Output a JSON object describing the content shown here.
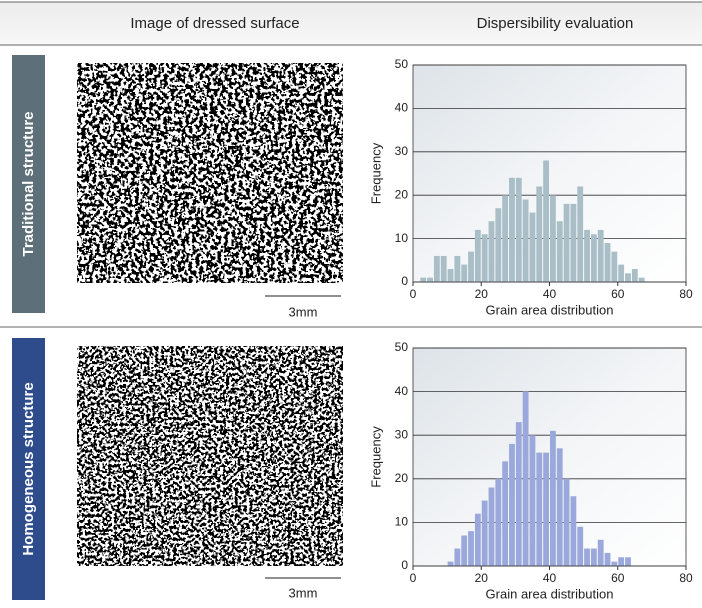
{
  "header": {
    "image_column": "Image of dressed surface",
    "evaluation_column": "Dispersibility evaluation"
  },
  "rows": [
    {
      "label": "Traditional structure",
      "scale_bar": "3mm"
    },
    {
      "label": "Homogeneous structure",
      "scale_bar": "3mm"
    }
  ],
  "chart_data": [
    {
      "type": "histogram",
      "x_label": "Grain area distribution",
      "y_label": "Frequency",
      "bins": [
        2,
        4,
        6,
        8,
        10,
        12,
        14,
        16,
        18,
        20,
        22,
        24,
        26,
        28,
        30,
        32,
        34,
        36,
        38,
        40,
        42,
        44,
        46,
        48,
        50,
        52,
        54,
        56,
        58,
        60,
        62,
        64,
        66,
        68
      ],
      "counts": [
        1,
        1,
        6,
        6,
        3,
        6,
        4,
        7,
        12,
        11,
        14,
        17,
        20,
        24,
        24,
        19,
        16,
        22,
        28,
        20,
        14,
        18,
        18,
        22,
        12,
        11,
        12,
        9,
        7,
        4,
        2,
        3,
        1
      ],
      "color": "#a9bec7",
      "xlim": [
        0,
        80
      ],
      "ylim": [
        0,
        50
      ],
      "xticks": [
        0,
        20,
        40,
        60,
        80
      ],
      "yticks": [
        0,
        10,
        20,
        30,
        40,
        50
      ],
      "grid": true
    },
    {
      "type": "histogram",
      "x_label": "Grain area distribution",
      "y_label": "Frequency",
      "bins": [
        10,
        12,
        14,
        16,
        18,
        20,
        22,
        24,
        26,
        28,
        30,
        32,
        34,
        36,
        38,
        40,
        42,
        44,
        46,
        48,
        50,
        52,
        54,
        56,
        58,
        60,
        62,
        64
      ],
      "counts": [
        1,
        4,
        7,
        8,
        12,
        15,
        18,
        20,
        24,
        28,
        33,
        40,
        30,
        26,
        26,
        31,
        27,
        20,
        16,
        9,
        4,
        4,
        6,
        3,
        1,
        2,
        2
      ],
      "color": "#9ba8dc",
      "xlim": [
        0,
        80
      ],
      "ylim": [
        0,
        50
      ],
      "xticks": [
        0,
        20,
        40,
        60,
        80
      ],
      "yticks": [
        0,
        10,
        20,
        30,
        40,
        50
      ],
      "grid": true
    }
  ]
}
